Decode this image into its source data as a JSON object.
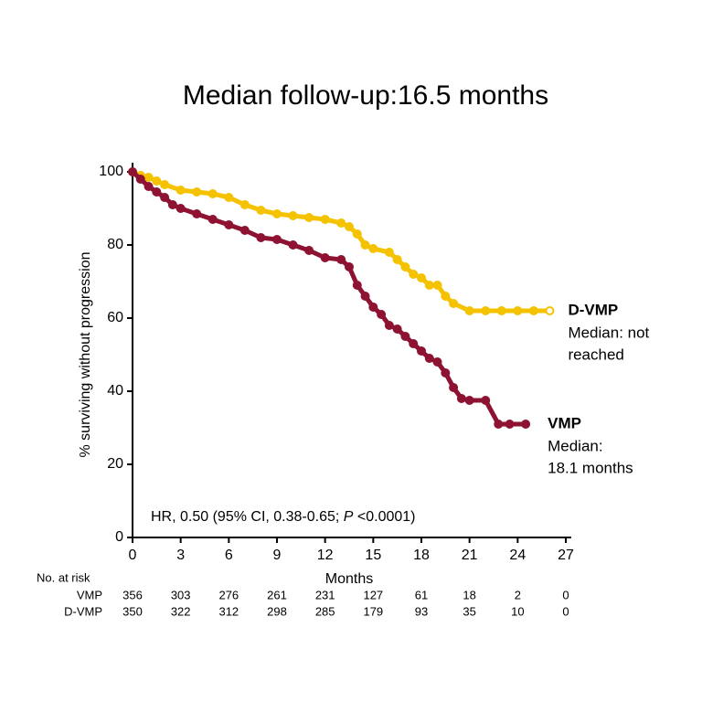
{
  "chart_data": {
    "type": "survival",
    "title": "Median follow-up:16.5 months",
    "x_label": "Months",
    "y_label": "% surviving without progression",
    "xlim": [
      0,
      27
    ],
    "xticks": [
      0,
      3,
      6,
      9,
      12,
      15,
      18,
      21,
      24,
      27
    ],
    "ylim": [
      0,
      100
    ],
    "yticks": [
      0,
      20,
      40,
      60,
      80,
      100
    ],
    "annotation": [
      "HR, 0.50 (95% CI, 0.38-0.65; ",
      "P",
      " <0.0001)"
    ],
    "series": [
      {
        "name": "D-VMP",
        "color": "#f5c200",
        "median_label": [
          "Median: not",
          "reached"
        ],
        "x": [
          0,
          0.5,
          1,
          1.5,
          2,
          3,
          4,
          5,
          6,
          7,
          8,
          9,
          10,
          11,
          12,
          13,
          13.5,
          14,
          14.5,
          15,
          16,
          16.5,
          17,
          17.5,
          18,
          18.5,
          19,
          19.5,
          20,
          21,
          22,
          23,
          24,
          25,
          26
        ],
        "values": [
          100,
          99,
          98.5,
          97.5,
          96.5,
          95,
          94.5,
          94,
          93,
          91,
          89.5,
          88.5,
          88,
          87.5,
          87,
          86,
          85,
          83,
          80,
          79,
          78,
          76,
          74,
          72,
          71,
          69,
          69,
          66,
          64,
          62,
          62,
          62,
          62,
          62,
          62
        ]
      },
      {
        "name": "VMP",
        "color": "#8e1232",
        "median_label": [
          "Median:",
          "18.1 months"
        ],
        "x": [
          0,
          0.5,
          1,
          1.5,
          2,
          2.5,
          3,
          4,
          5,
          6,
          7,
          8,
          9,
          10,
          11,
          12,
          13,
          13.5,
          14,
          14.5,
          15,
          15.5,
          16,
          16.5,
          17,
          17.5,
          18,
          18.5,
          19,
          19.5,
          20,
          20.5,
          21,
          22,
          22.8,
          23.5,
          24.5
        ],
        "values": [
          100,
          98,
          96,
          94.5,
          93,
          91,
          90,
          88.5,
          87,
          85.5,
          84,
          82,
          81.5,
          80,
          78.5,
          76.5,
          76,
          74,
          69,
          66,
          63,
          61,
          58,
          57,
          55,
          53,
          51,
          49,
          48,
          45,
          41,
          38,
          37.5,
          37.5,
          31,
          31,
          31
        ]
      }
    ],
    "risk_table": {
      "title": "No. at risk",
      "rows": [
        {
          "label": "VMP",
          "values": [
            356,
            303,
            276,
            261,
            231,
            127,
            61,
            18,
            2,
            0
          ]
        },
        {
          "label": "D-VMP",
          "values": [
            350,
            322,
            312,
            298,
            285,
            179,
            93,
            35,
            10,
            0
          ]
        }
      ]
    }
  }
}
